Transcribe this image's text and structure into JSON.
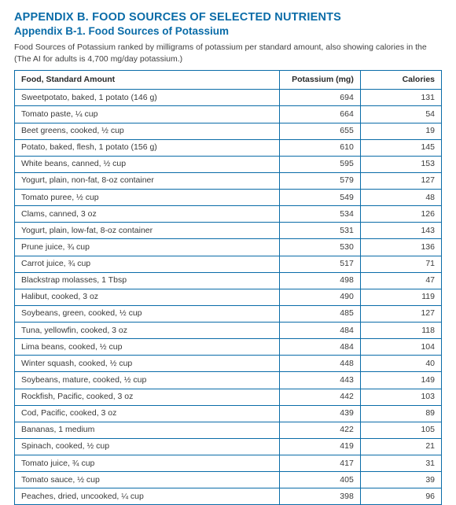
{
  "heading": {
    "title1": "APPENDIX B. FOOD SOURCES OF SELECTED NUTRIENTS",
    "title2": "Appendix B-1. Food Sources of Potassium",
    "desc": "Food Sources of Potassium ranked by milligrams of potassium per standard amount, also showing calories in the",
    "note": "(The AI for adults is 4,700 mg/day potassium.)"
  },
  "table": {
    "columns": {
      "food": "Food, Standard Amount",
      "potassium": "Potassium (mg)",
      "calories": "Calories"
    },
    "colors": {
      "border": "#0a6ca8",
      "heading": "#0a6ca8",
      "text": "#3a3a3a",
      "background": "#ffffff"
    },
    "font_sizes": {
      "title1": 14.5,
      "title2": 13.5,
      "body": 10.5
    },
    "col_widths_pct": [
      62,
      19,
      19
    ],
    "rows": [
      {
        "food": "Sweetpotato, baked, 1 potato (146 g)",
        "potassium": "694",
        "calories": "131"
      },
      {
        "food": "Tomato paste, ¼ cup",
        "potassium": "664",
        "calories": "54"
      },
      {
        "food": "Beet greens, cooked, ½ cup",
        "potassium": "655",
        "calories": "19"
      },
      {
        "food": "Potato, baked, flesh, 1 potato (156 g)",
        "potassium": "610",
        "calories": "145"
      },
      {
        "food": "White beans, canned, ½ cup",
        "potassium": "595",
        "calories": "153"
      },
      {
        "food": "Yogurt, plain, non-fat, 8-oz container",
        "potassium": "579",
        "calories": "127"
      },
      {
        "food": "Tomato puree, ½ cup",
        "potassium": "549",
        "calories": "48"
      },
      {
        "food": "Clams, canned, 3 oz",
        "potassium": "534",
        "calories": "126"
      },
      {
        "food": "Yogurt, plain, low-fat, 8-oz container",
        "potassium": "531",
        "calories": "143"
      },
      {
        "food": "Prune juice, ¾ cup",
        "potassium": "530",
        "calories": "136"
      },
      {
        "food": "Carrot juice, ¾ cup",
        "potassium": "517",
        "calories": "71"
      },
      {
        "food": "Blackstrap molasses, 1 Tbsp",
        "potassium": "498",
        "calories": "47"
      },
      {
        "food": "Halibut, cooked, 3 oz",
        "potassium": "490",
        "calories": "119"
      },
      {
        "food": "Soybeans, green, cooked, ½ cup",
        "potassium": "485",
        "calories": "127"
      },
      {
        "food": "Tuna, yellowfin, cooked, 3 oz",
        "potassium": "484",
        "calories": "118"
      },
      {
        "food": "Lima beans, cooked, ½ cup",
        "potassium": "484",
        "calories": "104"
      },
      {
        "food": "Winter squash, cooked, ½ cup",
        "potassium": "448",
        "calories": "40"
      },
      {
        "food": "Soybeans, mature, cooked, ½ cup",
        "potassium": "443",
        "calories": "149"
      },
      {
        "food": "Rockfish, Pacific, cooked, 3 oz",
        "potassium": "442",
        "calories": "103"
      },
      {
        "food": "Cod, Pacific, cooked, 3 oz",
        "potassium": "439",
        "calories": "89"
      },
      {
        "food": "Bananas, 1 medium",
        "potassium": "422",
        "calories": "105"
      },
      {
        "food": "Spinach, cooked, ½ cup",
        "potassium": "419",
        "calories": "21"
      },
      {
        "food": "Tomato juice, ¾ cup",
        "potassium": "417",
        "calories": "31"
      },
      {
        "food": "Tomato sauce, ½ cup",
        "potassium": "405",
        "calories": "39"
      },
      {
        "food": "Peaches, dried, uncooked, ¼ cup",
        "potassium": "398",
        "calories": "96"
      }
    ]
  }
}
